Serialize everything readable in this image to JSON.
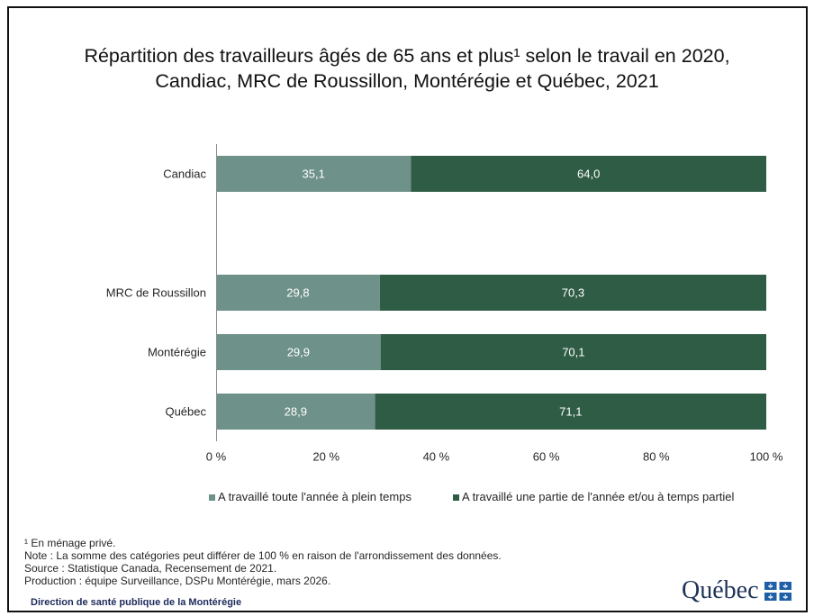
{
  "chart_data": {
    "type": "bar",
    "orientation": "horizontal",
    "stacked": "percent",
    "title_lines": [
      "Répartition des travailleurs âgés de 65 ans et plus¹ selon le travail en 2020,",
      "Candiac, MRC de Roussillon, Montérégie et Québec, 2021"
    ],
    "categories": [
      "Candiac",
      "MRC de Roussillon",
      "Montérégie",
      "Québec"
    ],
    "series": [
      {
        "name": "A travaillé toute l'année à plein temps",
        "values": [
          35.1,
          29.8,
          29.9,
          28.9
        ],
        "labels": [
          "35,1",
          "29,8",
          "29,9",
          "28,9"
        ],
        "color": "#6e9189"
      },
      {
        "name": "A travaillé une partie de l'année et/ou à temps partiel",
        "values": [
          64.0,
          70.3,
          70.1,
          71.1
        ],
        "labels": [
          "64,0",
          "70,3",
          "70,1",
          "71,1"
        ],
        "color": "#2f5c45"
      }
    ],
    "xlim": [
      0,
      100
    ],
    "xticks": [
      0,
      20,
      40,
      60,
      80,
      100
    ],
    "xtick_labels": [
      "0 %",
      "20 %",
      "40 %",
      "60 %",
      "80 %",
      "100 %"
    ],
    "data_label_color": "#ffffff",
    "grid": false,
    "legend": "bottom"
  },
  "footnotes": [
    "¹ En ménage privé.",
    "Note : La somme des catégories peut différer de 100 % en raison de l'arrondissement des données.",
    "Source : Statistique Canada, Recensement de 2021.",
    "Production : équipe Surveillance, DSPu Montérégie, mars 2026."
  ],
  "footer": {
    "organization": "Direction de santé publique de la Montérégie",
    "logo": {
      "wordmark": "Québec",
      "icon": "quebec-flag-icon"
    }
  },
  "colors": {
    "axis": "#8c8c8c",
    "organization_text": "#1d2a5b",
    "logo_text": "#1f3458",
    "logo_flag": "#1f5fa8"
  }
}
